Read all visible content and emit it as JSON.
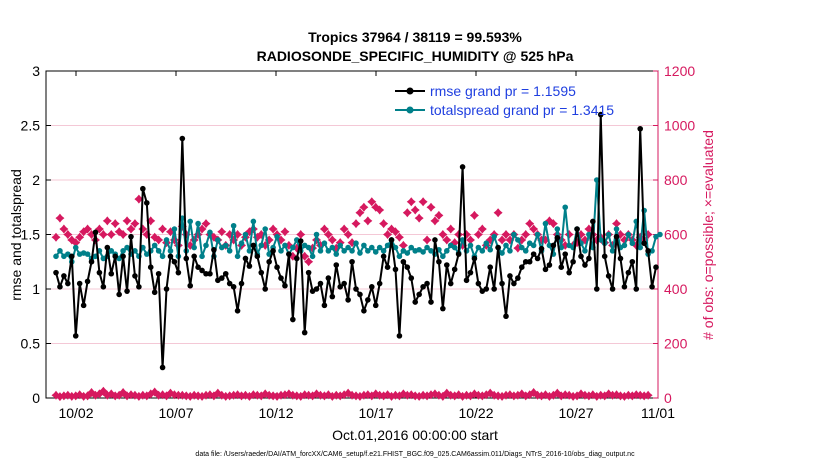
{
  "chart_data": {
    "type": "line",
    "title_line1": "Tropics 37964 / 38119 = 99.593%",
    "title_line2": "RADIOSONDE_SPECIFIC_HUMIDITY @ 525 hPa",
    "xlabel": "Oct.01,2016 00:00:00 start",
    "ylabel_left": "rmse and totalspread",
    "ylabel_right": "# of obs: o=possible; ×=evaluated",
    "ylim_left": [
      0,
      3
    ],
    "ylim_right": [
      0,
      1200
    ],
    "xlim": [
      0.5,
      31.1
    ],
    "x_ticks": [
      2,
      7,
      12,
      17,
      22,
      27,
      32
    ],
    "x_tick_labels": [
      "10/02",
      "10/07",
      "10/12",
      "10/17",
      "10/22",
      "10/27",
      "11/01"
    ],
    "y_ticks_left": [
      0,
      0.5,
      1,
      1.5,
      2,
      2.5,
      3
    ],
    "y_tick_labels_left": [
      "0",
      "0.5",
      "1",
      "1.5",
      "2",
      "2.5",
      "3"
    ],
    "y_ticks_right": [
      0,
      200,
      400,
      600,
      800,
      1000,
      1200
    ],
    "y_tick_labels_right": [
      "0",
      "200",
      "400",
      "600",
      "800",
      "1000",
      "1200"
    ],
    "legend_location": "top-right",
    "colors": {
      "rmse": "#000000",
      "spread": "#00808a",
      "obs": "#d6195f",
      "legend_text": "#1f3fe0",
      "right_axis": "#d6195f"
    },
    "series": [
      {
        "name": "rmse grand pr = 1.1595",
        "values": [
          1.15,
          1.02,
          1.12,
          1.05,
          1.3,
          0.57,
          1.05,
          0.85,
          1.07,
          1.25,
          1.52,
          1.15,
          1.02,
          1.38,
          1.14,
          1.3,
          0.95,
          1.3,
          0.98,
          1.48,
          1.12,
          1.02,
          1.92,
          1.79,
          1.2,
          0.97,
          1.14,
          0.28,
          1.0,
          1.3,
          1.25,
          1.15,
          2.38,
          1.28,
          1.03,
          1.3,
          1.2,
          1.17,
          1.14,
          1.14,
          1.36,
          1.08,
          1.1,
          1.14,
          1.05,
          1.02,
          0.8,
          1.05,
          1.28,
          1.21,
          1.4,
          1.3,
          1.15,
          1.0,
          1.25,
          1.35,
          1.2,
          1.1,
          1.03,
          1.32,
          0.72,
          1.28,
          1.44,
          0.6,
          1.15,
          0.98,
          1.0,
          1.05,
          0.85,
          1.1,
          0.93,
          1.22,
          1.02,
          1.05,
          0.9,
          1.25,
          1.0,
          0.95,
          0.8,
          0.9,
          1.02,
          0.85,
          1.05,
          1.3,
          1.2,
          1.45,
          1.18,
          0.57,
          1.25,
          1.2,
          1.1,
          0.88,
          0.95,
          1.02,
          1.05,
          0.88,
          1.45,
          1.25,
          0.82,
          1.22,
          1.05,
          1.18,
          1.32,
          2.12,
          1.08,
          1.15,
          1.28,
          1.05,
          0.98,
          1.0,
          1.2,
          1.0,
          1.38,
          1.05,
          0.75,
          1.12,
          1.05,
          1.1,
          1.2,
          1.25,
          1.25,
          1.32,
          1.28,
          1.37,
          1.18,
          1.22,
          1.4,
          1.47,
          1.2,
          1.32,
          1.15,
          1.25,
          1.55,
          1.3,
          1.22,
          1.28,
          1.62,
          1.0,
          2.6,
          1.3,
          1.12,
          1.0,
          1.48,
          1.28,
          1.02,
          1.15,
          1.25,
          1.0,
          2.47,
          1.42,
          1.35,
          1.02,
          1.2
        ]
      },
      {
        "name": "totalspread grand pr = 1.3415",
        "values": [
          1.3,
          1.35,
          1.3,
          1.32,
          1.25,
          1.38,
          1.32,
          1.33,
          1.32,
          1.28,
          1.3,
          1.35,
          1.28,
          1.3,
          1.35,
          1.32,
          1.28,
          1.35,
          1.38,
          1.32,
          1.35,
          1.3,
          1.38,
          1.32,
          1.35,
          1.4,
          1.35,
          1.3,
          1.45,
          1.35,
          1.55,
          1.3,
          1.65,
          1.35,
          1.62,
          1.38,
          1.6,
          1.3,
          1.4,
          1.52,
          1.3,
          1.45,
          1.38,
          1.4,
          1.35,
          1.58,
          1.3,
          1.42,
          1.5,
          1.35,
          1.62,
          1.32,
          1.4,
          1.55,
          1.32,
          1.38,
          1.48,
          1.35,
          1.4,
          1.32,
          1.38,
          1.45,
          1.35,
          1.4,
          1.38,
          1.3,
          1.5,
          1.35,
          1.42,
          1.35,
          1.38,
          1.32,
          1.4,
          1.35,
          1.38,
          1.35,
          1.42,
          1.33,
          1.4,
          1.35,
          1.38,
          1.34,
          1.38,
          1.35,
          1.4,
          1.45,
          1.38,
          1.3,
          1.35,
          1.33,
          1.38,
          1.35,
          1.36,
          1.34,
          1.38,
          1.35,
          1.32,
          1.36,
          1.3,
          1.35,
          1.4,
          1.38,
          1.33,
          1.45,
          1.35,
          1.4,
          1.3,
          1.38,
          1.35,
          1.42,
          1.36,
          1.48,
          1.38,
          1.33,
          1.4,
          1.35,
          1.5,
          1.45,
          1.38,
          1.35,
          1.42,
          1.4,
          1.5,
          1.35,
          1.6,
          1.4,
          1.32,
          1.55,
          1.38,
          1.75,
          1.4,
          1.38,
          1.55,
          1.42,
          1.35,
          1.5,
          1.38,
          2.0,
          1.45,
          1.42,
          1.5,
          1.35,
          1.55,
          1.38,
          1.4,
          1.5,
          1.42,
          1.62,
          1.38,
          1.72,
          1.32,
          1.35,
          1.48,
          1.5
        ]
      },
      {
        "name": "obs possible",
        "axis": "right",
        "values": [
          590,
          660,
          620,
          600,
          580,
          570,
          590,
          610,
          620,
          600,
          580,
          620,
          600,
          650,
          600,
          640,
          610,
          600,
          650,
          620,
          640,
          730,
          620,
          600,
          650,
          590,
          580,
          620,
          570,
          610,
          580,
          560,
          630,
          600,
          560,
          580,
          600,
          620,
          640,
          600,
          590,
          580,
          610,
          560,
          600,
          580,
          600,
          560,
          590,
          610,
          620,
          590,
          600,
          560,
          580,
          620,
          600,
          580,
          610,
          560,
          520,
          550,
          600,
          520,
          500,
          550,
          580,
          560,
          620,
          600,
          580,
          550,
          570,
          620,
          600,
          570,
          640,
          680,
          700,
          650,
          720,
          700,
          690,
          640,
          600,
          620,
          610,
          590,
          560,
          680,
          720,
          690,
          660,
          720,
          580,
          700,
          650,
          670,
          600,
          580,
          620,
          570,
          600,
          560,
          600,
          580,
          670,
          600,
          620,
          560,
          580,
          600,
          680,
          580,
          600,
          580,
          600,
          550,
          580,
          600,
          640,
          620,
          600,
          580,
          580,
          650,
          640,
          600,
          580,
          560,
          600,
          560,
          570,
          600,
          580,
          620,
          600,
          580,
          590,
          570,
          600,
          560,
          640,
          600,
          580,
          600,
          580,
          560,
          590,
          580,
          600
        ]
      },
      {
        "name": "obs evaluated",
        "axis": "right",
        "values": [
          10,
          5,
          8,
          10,
          6,
          8,
          12,
          6,
          8,
          20,
          10,
          15,
          25,
          10,
          15,
          8,
          10,
          20,
          8,
          12,
          10,
          6,
          10,
          8,
          15,
          22,
          10,
          12,
          8,
          18,
          12,
          10,
          10,
          8,
          6,
          10,
          8,
          6,
          10,
          12,
          8,
          18,
          10,
          6,
          8,
          10,
          12,
          8,
          10,
          6,
          12,
          10,
          8,
          15,
          10,
          8,
          6,
          10,
          12,
          15,
          10,
          8,
          6,
          12,
          10,
          8,
          15,
          10,
          8,
          12,
          6,
          10,
          8,
          12,
          18,
          10,
          8,
          6,
          10,
          12,
          8,
          15,
          10,
          8,
          12,
          6,
          10,
          8,
          15,
          10,
          12,
          8,
          6,
          10,
          8,
          12,
          15,
          10,
          6,
          18,
          10,
          8,
          12,
          6,
          10,
          8,
          15,
          10,
          8,
          12,
          18,
          10,
          8,
          6,
          10,
          12,
          8,
          10,
          15,
          8,
          12,
          20,
          10,
          8,
          12,
          6,
          10,
          18,
          8,
          12,
          10,
          6,
          8,
          15,
          10,
          8,
          12,
          6,
          10,
          8,
          15,
          10,
          12,
          8,
          6,
          10,
          8,
          12,
          10,
          8,
          10
        ]
      }
    ]
  },
  "footer": "data file: /Users/raeder/DAI/ATM_forcXX/CAM6_setup/f.e21.FHIST_BGC.f09_025.CAM6assim.011/Diags_NTrS_2016-10/obs_diag_output.nc"
}
